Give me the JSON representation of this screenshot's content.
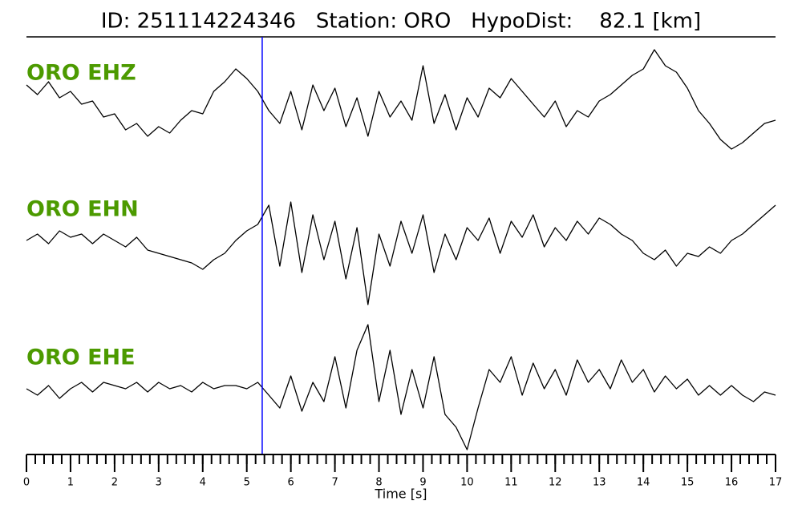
{
  "chart_data": {
    "type": "seismogram",
    "title": "ID: 251114224346   Station: ORO   HypoDist:    82.1 [km]",
    "xlabel": "Time [s]",
    "xlim": [
      0,
      17
    ],
    "xticks": [
      0,
      1,
      2,
      3,
      4,
      5,
      6,
      7,
      8,
      9,
      10,
      11,
      12,
      13,
      14,
      15,
      16,
      17
    ],
    "xminor": 0.2,
    "ylim": [
      -1,
      1
    ],
    "pick_time": 5.35,
    "pick_color": "#0000ff",
    "label_color": "#4c9a00",
    "x": [
      0,
      0.25,
      0.5,
      0.75,
      1,
      1.25,
      1.5,
      1.75,
      2,
      2.25,
      2.5,
      2.75,
      3,
      3.25,
      3.5,
      3.75,
      4,
      4.25,
      4.5,
      4.75,
      5,
      5.25,
      5.5,
      5.75,
      6,
      6.25,
      6.5,
      6.75,
      7,
      7.25,
      7.5,
      7.75,
      8,
      8.25,
      8.5,
      8.75,
      9,
      9.25,
      9.5,
      9.75,
      10,
      10.25,
      10.5,
      10.75,
      11,
      11.25,
      11.5,
      11.75,
      12,
      12.25,
      12.5,
      12.75,
      13,
      13.25,
      13.5,
      13.75,
      14,
      14.25,
      14.5,
      14.75,
      15,
      15.25,
      15.5,
      15.75,
      16,
      16.25,
      16.5,
      16.75,
      17
    ],
    "series": [
      {
        "name": "ORO EHZ",
        "color": "#000000",
        "values": [
          0.3,
          0.15,
          0.35,
          0.1,
          0.2,
          0,
          0.05,
          -0.2,
          -0.15,
          -0.4,
          -0.3,
          -0.5,
          -0.35,
          -0.45,
          -0.25,
          -0.1,
          -0.15,
          0.2,
          0.35,
          0.55,
          0.4,
          0.2,
          -0.1,
          -0.3,
          0.2,
          -0.4,
          0.3,
          -0.1,
          0.25,
          -0.35,
          0.1,
          -0.5,
          0.2,
          -0.2,
          0.05,
          -0.25,
          0.6,
          -0.3,
          0.15,
          -0.4,
          0.1,
          -0.2,
          0.25,
          0.1,
          0.4,
          0.2,
          0,
          -0.2,
          0.05,
          -0.35,
          -0.1,
          -0.2,
          0.05,
          0.15,
          0.3,
          0.45,
          0.55,
          0.85,
          0.6,
          0.5,
          0.25,
          -0.1,
          -0.3,
          -0.55,
          -0.7,
          -0.6,
          -0.45,
          -0.3,
          -0.25
        ]
      },
      {
        "name": "ORO EHN",
        "color": "#000000",
        "values": [
          0,
          0.1,
          -0.05,
          0.15,
          0.05,
          0.1,
          -0.05,
          0.1,
          0,
          -0.1,
          0.05,
          -0.15,
          -0.2,
          -0.25,
          -0.3,
          -0.35,
          -0.45,
          -0.3,
          -0.2,
          0,
          0.15,
          0.25,
          0.55,
          -0.4,
          0.6,
          -0.5,
          0.4,
          -0.3,
          0.3,
          -0.6,
          0.2,
          -1.0,
          0.1,
          -0.4,
          0.3,
          -0.2,
          0.4,
          -0.5,
          0.1,
          -0.3,
          0.2,
          0,
          0.35,
          -0.2,
          0.3,
          0.05,
          0.4,
          -0.1,
          0.2,
          0,
          0.3,
          0.1,
          0.35,
          0.25,
          0.1,
          0,
          -0.2,
          -0.3,
          -0.15,
          -0.4,
          -0.2,
          -0.25,
          -0.1,
          -0.2,
          0,
          0.1,
          0.25,
          0.4,
          0.55
        ]
      },
      {
        "name": "ORO EHE",
        "color": "#000000",
        "values": [
          0,
          -0.1,
          0.05,
          -0.15,
          0,
          0.1,
          -0.05,
          0.1,
          0.05,
          0,
          0.1,
          -0.05,
          0.1,
          0,
          0.05,
          -0.05,
          0.1,
          0,
          0.05,
          0.05,
          0,
          0.1,
          -0.1,
          -0.3,
          0.2,
          -0.35,
          0.1,
          -0.2,
          0.5,
          -0.3,
          0.6,
          1.0,
          -0.2,
          0.6,
          -0.4,
          0.3,
          -0.3,
          0.5,
          -0.4,
          -0.6,
          -0.95,
          -0.3,
          0.3,
          0.1,
          0.5,
          -0.1,
          0.4,
          0,
          0.3,
          -0.1,
          0.45,
          0.1,
          0.3,
          0,
          0.45,
          0.1,
          0.3,
          -0.05,
          0.2,
          0,
          0.15,
          -0.1,
          0.05,
          -0.1,
          0.05,
          -0.1,
          -0.2,
          -0.05,
          -0.1
        ]
      }
    ]
  }
}
